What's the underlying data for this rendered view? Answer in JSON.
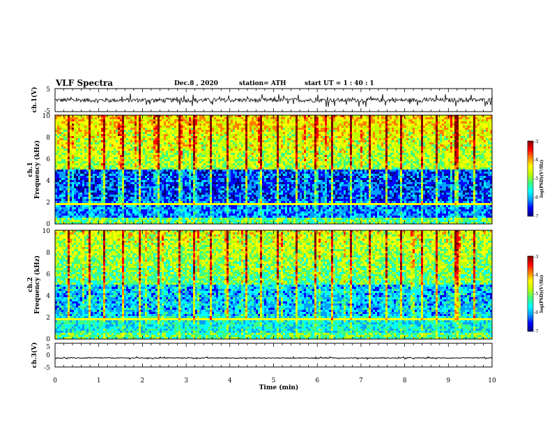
{
  "header": {
    "title": "VLF Spectra",
    "date": "Dec.8 , 2020",
    "station": "station= ATH",
    "start": "start UT = 1 : 40 : 1"
  },
  "chart_data": [
    {
      "type": "line",
      "panel": "ch1-waveform",
      "ylabel": "ch.1(V)",
      "ylim": [
        -5,
        5
      ],
      "yticks": [
        "5",
        "-5"
      ],
      "xlim": [
        0,
        10
      ],
      "baseline": 0,
      "noise_amplitude": 1.5,
      "color": "#000000"
    },
    {
      "type": "heatmap",
      "panel": "ch1-spectrogram",
      "ylabel_line1": "ch.1",
      "ylabel_line2": "Frequency (kHz)",
      "ylim": [
        0,
        10
      ],
      "yticks": [
        "0",
        "2",
        "4",
        "6",
        "8",
        "10"
      ],
      "xlim": [
        0,
        10
      ],
      "colorbar": {
        "label": "log(PSD)(V²/Hz)",
        "range": [
          -7,
          -3
        ],
        "ticks": [
          "-3",
          "-4",
          "-5",
          "-6",
          "-7"
        ]
      },
      "impulse_times_min": [
        0.3,
        0.75,
        1.1,
        1.55,
        1.9,
        2.35,
        2.8,
        3.15,
        3.55,
        3.9,
        4.35,
        4.7,
        5.05,
        5.5,
        5.95,
        6.3,
        6.75,
        7.2,
        7.55,
        7.9,
        8.35,
        8.7,
        9.15,
        9.2,
        9.55
      ]
    },
    {
      "type": "heatmap",
      "panel": "ch2-spectrogram",
      "ylabel_line1": "ch.2",
      "ylabel_line2": "Frequency (kHz)",
      "ylim": [
        0,
        10
      ],
      "yticks": [
        "0",
        "2",
        "4",
        "6",
        "8",
        "10"
      ],
      "xlim": [
        0,
        10
      ],
      "colorbar": {
        "label": "log(PSD)(V²/Hz)",
        "range": [
          -7,
          -3
        ],
        "ticks": [
          "-3",
          "-4",
          "-5",
          "-6",
          "-7"
        ]
      },
      "impulse_times_min": [
        0.3,
        0.75,
        1.1,
        1.55,
        1.9,
        2.35,
        2.8,
        3.15,
        3.55,
        3.9,
        4.35,
        4.7,
        5.05,
        5.5,
        5.95,
        6.3,
        6.75,
        7.2,
        7.55,
        7.9,
        8.35,
        8.7,
        9.15,
        9.2,
        9.55
      ]
    },
    {
      "type": "line",
      "panel": "ch3-waveform",
      "ylabel": "ch.3(V)",
      "ylim": [
        -5,
        5
      ],
      "yticks": [
        "5",
        "0",
        "-5"
      ],
      "xlim": [
        0,
        10
      ],
      "xlabel": "Time (min)",
      "xticks": [
        "0",
        "1",
        "2",
        "3",
        "4",
        "5",
        "6",
        "7",
        "8",
        "9",
        "10"
      ],
      "baseline": -1.2,
      "noise_amplitude": 0.25,
      "color": "#000000"
    }
  ],
  "colors": {
    "colormap": [
      "#000080",
      "#0000ff",
      "#00a0ff",
      "#00ffff",
      "#40ff80",
      "#c0ff00",
      "#ffff00",
      "#ff8000",
      "#ff0000",
      "#800000"
    ]
  }
}
